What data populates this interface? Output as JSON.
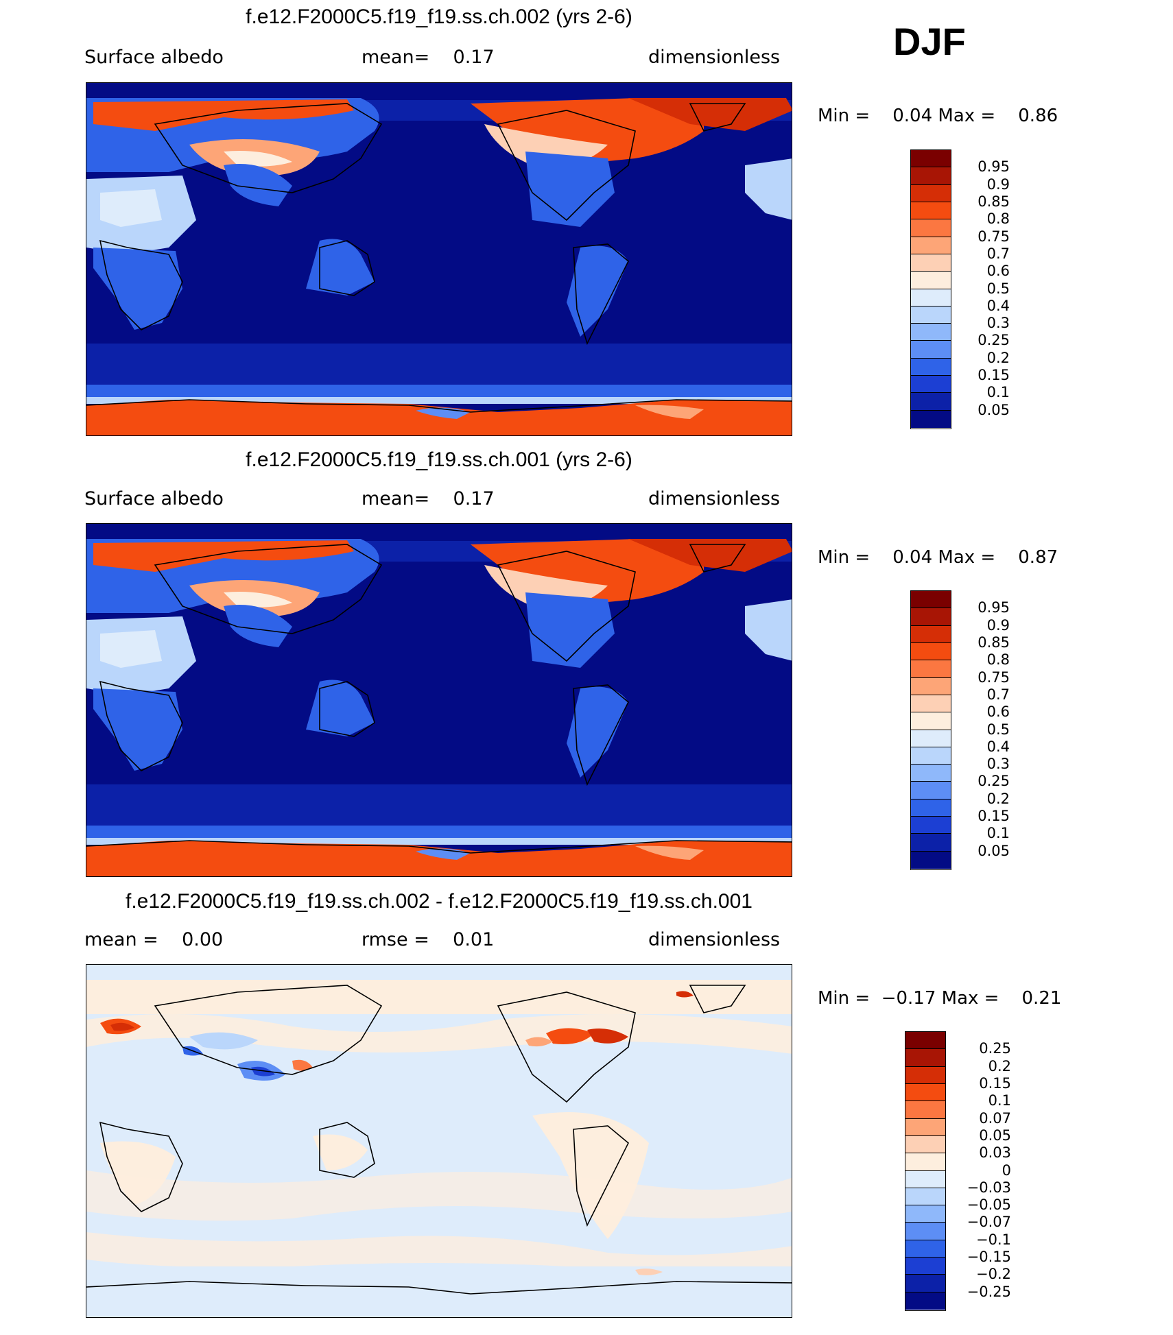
{
  "season": "DJF",
  "panels": [
    {
      "title": "f.e12.F2000C5.f19_f19.ss.ch.002 (yrs 2-6)",
      "left_text": "Surface albedo",
      "mid_text": "mean=    0.17",
      "right_text": "dimensionless",
      "minmax": "Min =    0.04 Max =    0.86",
      "colorbar": {
        "labels": [
          "0.95",
          "0.9",
          "0.85",
          "0.8",
          "0.75",
          "0.7",
          "0.6",
          "0.5",
          "0.4",
          "0.3",
          "0.25",
          "0.2",
          "0.15",
          "0.1",
          "0.05"
        ],
        "colors": [
          "#7a0000",
          "#a81505",
          "#d52e06",
          "#f44c10",
          "#fb7741",
          "#fda577",
          "#fdd0b5",
          "#fdeede",
          "#deecfb",
          "#bad6fb",
          "#8fb8fa",
          "#5d8ef5",
          "#2f63e8",
          "#1c3fd3",
          "#0c21a8",
          "#030b85"
        ]
      }
    },
    {
      "title": "f.e12.F2000C5.f19_f19.ss.ch.001 (yrs 2-6)",
      "left_text": "Surface albedo",
      "mid_text": "mean=    0.17",
      "right_text": "dimensionless",
      "minmax": "Min =    0.04 Max =    0.87",
      "colorbar": {
        "labels": [
          "0.95",
          "0.9",
          "0.85",
          "0.8",
          "0.75",
          "0.7",
          "0.6",
          "0.5",
          "0.4",
          "0.3",
          "0.25",
          "0.2",
          "0.15",
          "0.1",
          "0.05"
        ],
        "colors": [
          "#7a0000",
          "#a81505",
          "#d52e06",
          "#f44c10",
          "#fb7741",
          "#fda577",
          "#fdd0b5",
          "#fdeede",
          "#deecfb",
          "#bad6fb",
          "#8fb8fa",
          "#5d8ef5",
          "#2f63e8",
          "#1c3fd3",
          "#0c21a8",
          "#030b85"
        ]
      }
    },
    {
      "title": "f.e12.F2000C5.f19_f19.ss.ch.002 - f.e12.F2000C5.f19_f19.ss.ch.001",
      "left_text": "mean =    0.00",
      "mid_text": "rmse =    0.01",
      "right_text": "dimensionless",
      "minmax": "Min =  −0.17 Max =    0.21",
      "colorbar": {
        "labels": [
          "0.25",
          "0.2",
          "0.15",
          "0.1",
          "0.07",
          "0.05",
          "0.03",
          "0",
          "−0.03",
          "−0.05",
          "−0.07",
          "−0.1",
          "−0.15",
          "−0.2",
          "−0.25"
        ],
        "colors": [
          "#7a0000",
          "#a81505",
          "#d52e06",
          "#f44c10",
          "#fb7741",
          "#fda577",
          "#fdd0b5",
          "#fdeede",
          "#deecfb",
          "#bad6fb",
          "#8fb8fa",
          "#5d8ef5",
          "#2f63e8",
          "#1c3fd3",
          "#0c21a8",
          "#030b85"
        ]
      }
    }
  ]
}
